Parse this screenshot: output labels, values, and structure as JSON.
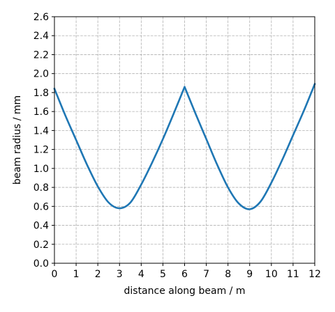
{
  "chart_data": {
    "type": "line",
    "title": "",
    "xlabel": "distance along beam / m",
    "ylabel": "beam radius / mm",
    "xlim": [
      0,
      12
    ],
    "ylim": [
      0,
      2.6
    ],
    "xticks": [
      0,
      1,
      2,
      3,
      4,
      5,
      6,
      7,
      8,
      9,
      10,
      11,
      12
    ],
    "yticks": [
      0.0,
      0.2,
      0.4,
      0.6,
      0.8,
      1.0,
      1.2,
      1.4,
      1.6,
      1.8,
      2.0,
      2.2,
      2.4,
      2.6
    ],
    "ytick_labels": [
      "0.0",
      "0.2",
      "0.4",
      "0.6",
      "0.8",
      "1.0",
      "1.2",
      "1.4",
      "1.6",
      "1.8",
      "2.0",
      "2.2",
      "2.4",
      "2.6"
    ],
    "xtick_labels": [
      "0",
      "1",
      "2",
      "3",
      "4",
      "5",
      "6",
      "7",
      "8",
      "9",
      "10",
      "11",
      "12"
    ],
    "grid": true,
    "legend": "none",
    "colors": {
      "line": "#1f77b4",
      "grid": "#b0b0b0",
      "axes": "#000000"
    },
    "series": [
      {
        "x": [
          0,
          0.5,
          1,
          1.5,
          2,
          2.5,
          3,
          3.5,
          4,
          4.5,
          5,
          5.5,
          6,
          6.5,
          7,
          7.5,
          8,
          8.5,
          9,
          9.5,
          10,
          10.5,
          11,
          11.5,
          12
        ],
        "y": [
          1.84,
          1.56,
          1.3,
          1.04,
          0.81,
          0.64,
          0.58,
          0.64,
          0.83,
          1.06,
          1.31,
          1.58,
          1.86,
          1.58,
          1.31,
          1.04,
          0.8,
          0.63,
          0.57,
          0.65,
          0.85,
          1.09,
          1.35,
          1.61,
          1.89
        ]
      }
    ]
  }
}
